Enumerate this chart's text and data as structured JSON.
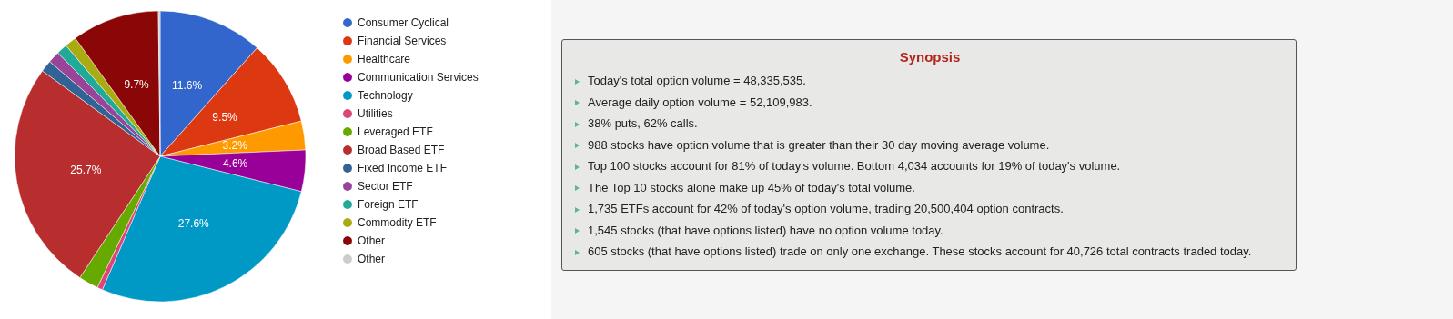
{
  "chart_data": [
    {
      "type": "pie",
      "categories": [
        "Consumer Cyclical",
        "Financial Services",
        "Healthcare",
        "Communication Services",
        "Technology",
        "Utilities",
        "Leveraged ETF",
        "Broad Based ETF",
        "Fixed Income ETF",
        "Sector ETF",
        "Foreign ETF",
        "Commodity ETF",
        "Other",
        "Other"
      ],
      "values": [
        11.6,
        9.5,
        3.2,
        4.6,
        27.6,
        0.6,
        2.2,
        25.7,
        1.3,
        1.3,
        1.2,
        1.3,
        9.7,
        0.2
      ],
      "colors": [
        "#3366cc",
        "#dc3912",
        "#ff9900",
        "#990099",
        "#0099c6",
        "#dd4477",
        "#66aa00",
        "#b82e2e",
        "#316395",
        "#994499",
        "#22aa99",
        "#aaaa11",
        "#8b0707",
        "#cccccc"
      ],
      "value_labels": [
        "11.6%",
        "9.5%",
        "3.2%",
        "4.6%",
        "27.6%",
        null,
        null,
        "25.7%",
        null,
        null,
        null,
        null,
        "9.7%",
        null
      ],
      "legend": "right"
    },
    {
      "type": "other",
      "title": "Synopsis",
      "annotations": [
        "Today's total option volume = 48,335,535.",
        "Average daily option volume = 52,109,983.",
        "38% puts, 62% calls.",
        "988 stocks have option volume that is greater than their 30 day moving average volume.",
        "Top 100 stocks account for 81% of today's volume. Bottom 4,034 accounts for 19% of today's volume.",
        "The Top 10 stocks alone make up 45% of today's total volume.",
        "1,735 ETFs account for 42% of today's option volume, trading 20,500,404 option contracts.",
        "1,545 stocks (that have options listed) have no option volume today.",
        "605 stocks (that have options listed) trade on only one exchange. These stocks account for 40,726 total contracts traded today."
      ]
    }
  ]
}
